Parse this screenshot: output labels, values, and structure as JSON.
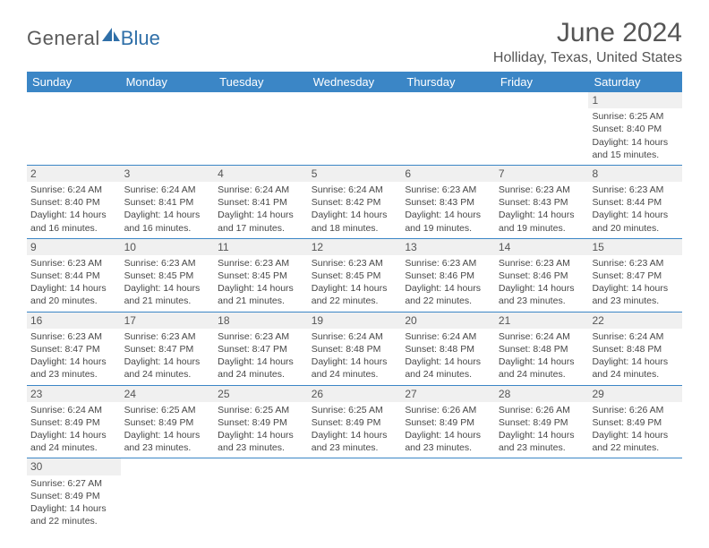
{
  "branding": {
    "logo_text_1": "General",
    "logo_text_2": "Blue",
    "sail_color": "#2f6fa8",
    "text_color_1": "#5a5a5a",
    "text_color_2": "#2f6fa8"
  },
  "header": {
    "title": "June 2024",
    "location": "Holliday, Texas, United States"
  },
  "calendar": {
    "day_header_bg": "#3b86c6",
    "day_header_fg": "#ffffff",
    "rule_color": "#3b86c6",
    "shaded_bg": "#f0f0f0",
    "cell_font_size_pt": 8,
    "day_names": [
      "Sunday",
      "Monday",
      "Tuesday",
      "Wednesday",
      "Thursday",
      "Friday",
      "Saturday"
    ],
    "weeks": [
      [
        null,
        null,
        null,
        null,
        null,
        null,
        {
          "n": "1",
          "sunrise": "Sunrise: 6:25 AM",
          "sunset": "Sunset: 8:40 PM",
          "daylight1": "Daylight: 14 hours",
          "daylight2": "and 15 minutes."
        }
      ],
      [
        {
          "n": "2",
          "sunrise": "Sunrise: 6:24 AM",
          "sunset": "Sunset: 8:40 PM",
          "daylight1": "Daylight: 14 hours",
          "daylight2": "and 16 minutes."
        },
        {
          "n": "3",
          "sunrise": "Sunrise: 6:24 AM",
          "sunset": "Sunset: 8:41 PM",
          "daylight1": "Daylight: 14 hours",
          "daylight2": "and 16 minutes."
        },
        {
          "n": "4",
          "sunrise": "Sunrise: 6:24 AM",
          "sunset": "Sunset: 8:41 PM",
          "daylight1": "Daylight: 14 hours",
          "daylight2": "and 17 minutes."
        },
        {
          "n": "5",
          "sunrise": "Sunrise: 6:24 AM",
          "sunset": "Sunset: 8:42 PM",
          "daylight1": "Daylight: 14 hours",
          "daylight2": "and 18 minutes."
        },
        {
          "n": "6",
          "sunrise": "Sunrise: 6:23 AM",
          "sunset": "Sunset: 8:43 PM",
          "daylight1": "Daylight: 14 hours",
          "daylight2": "and 19 minutes."
        },
        {
          "n": "7",
          "sunrise": "Sunrise: 6:23 AM",
          "sunset": "Sunset: 8:43 PM",
          "daylight1": "Daylight: 14 hours",
          "daylight2": "and 19 minutes."
        },
        {
          "n": "8",
          "sunrise": "Sunrise: 6:23 AM",
          "sunset": "Sunset: 8:44 PM",
          "daylight1": "Daylight: 14 hours",
          "daylight2": "and 20 minutes."
        }
      ],
      [
        {
          "n": "9",
          "sunrise": "Sunrise: 6:23 AM",
          "sunset": "Sunset: 8:44 PM",
          "daylight1": "Daylight: 14 hours",
          "daylight2": "and 20 minutes."
        },
        {
          "n": "10",
          "sunrise": "Sunrise: 6:23 AM",
          "sunset": "Sunset: 8:45 PM",
          "daylight1": "Daylight: 14 hours",
          "daylight2": "and 21 minutes."
        },
        {
          "n": "11",
          "sunrise": "Sunrise: 6:23 AM",
          "sunset": "Sunset: 8:45 PM",
          "daylight1": "Daylight: 14 hours",
          "daylight2": "and 21 minutes."
        },
        {
          "n": "12",
          "sunrise": "Sunrise: 6:23 AM",
          "sunset": "Sunset: 8:45 PM",
          "daylight1": "Daylight: 14 hours",
          "daylight2": "and 22 minutes."
        },
        {
          "n": "13",
          "sunrise": "Sunrise: 6:23 AM",
          "sunset": "Sunset: 8:46 PM",
          "daylight1": "Daylight: 14 hours",
          "daylight2": "and 22 minutes."
        },
        {
          "n": "14",
          "sunrise": "Sunrise: 6:23 AM",
          "sunset": "Sunset: 8:46 PM",
          "daylight1": "Daylight: 14 hours",
          "daylight2": "and 23 minutes."
        },
        {
          "n": "15",
          "sunrise": "Sunrise: 6:23 AM",
          "sunset": "Sunset: 8:47 PM",
          "daylight1": "Daylight: 14 hours",
          "daylight2": "and 23 minutes."
        }
      ],
      [
        {
          "n": "16",
          "sunrise": "Sunrise: 6:23 AM",
          "sunset": "Sunset: 8:47 PM",
          "daylight1": "Daylight: 14 hours",
          "daylight2": "and 23 minutes."
        },
        {
          "n": "17",
          "sunrise": "Sunrise: 6:23 AM",
          "sunset": "Sunset: 8:47 PM",
          "daylight1": "Daylight: 14 hours",
          "daylight2": "and 24 minutes."
        },
        {
          "n": "18",
          "sunrise": "Sunrise: 6:23 AM",
          "sunset": "Sunset: 8:47 PM",
          "daylight1": "Daylight: 14 hours",
          "daylight2": "and 24 minutes."
        },
        {
          "n": "19",
          "sunrise": "Sunrise: 6:24 AM",
          "sunset": "Sunset: 8:48 PM",
          "daylight1": "Daylight: 14 hours",
          "daylight2": "and 24 minutes."
        },
        {
          "n": "20",
          "sunrise": "Sunrise: 6:24 AM",
          "sunset": "Sunset: 8:48 PM",
          "daylight1": "Daylight: 14 hours",
          "daylight2": "and 24 minutes."
        },
        {
          "n": "21",
          "sunrise": "Sunrise: 6:24 AM",
          "sunset": "Sunset: 8:48 PM",
          "daylight1": "Daylight: 14 hours",
          "daylight2": "and 24 minutes."
        },
        {
          "n": "22",
          "sunrise": "Sunrise: 6:24 AM",
          "sunset": "Sunset: 8:48 PM",
          "daylight1": "Daylight: 14 hours",
          "daylight2": "and 24 minutes."
        }
      ],
      [
        {
          "n": "23",
          "sunrise": "Sunrise: 6:24 AM",
          "sunset": "Sunset: 8:49 PM",
          "daylight1": "Daylight: 14 hours",
          "daylight2": "and 24 minutes."
        },
        {
          "n": "24",
          "sunrise": "Sunrise: 6:25 AM",
          "sunset": "Sunset: 8:49 PM",
          "daylight1": "Daylight: 14 hours",
          "daylight2": "and 23 minutes."
        },
        {
          "n": "25",
          "sunrise": "Sunrise: 6:25 AM",
          "sunset": "Sunset: 8:49 PM",
          "daylight1": "Daylight: 14 hours",
          "daylight2": "and 23 minutes."
        },
        {
          "n": "26",
          "sunrise": "Sunrise: 6:25 AM",
          "sunset": "Sunset: 8:49 PM",
          "daylight1": "Daylight: 14 hours",
          "daylight2": "and 23 minutes."
        },
        {
          "n": "27",
          "sunrise": "Sunrise: 6:26 AM",
          "sunset": "Sunset: 8:49 PM",
          "daylight1": "Daylight: 14 hours",
          "daylight2": "and 23 minutes."
        },
        {
          "n": "28",
          "sunrise": "Sunrise: 6:26 AM",
          "sunset": "Sunset: 8:49 PM",
          "daylight1": "Daylight: 14 hours",
          "daylight2": "and 23 minutes."
        },
        {
          "n": "29",
          "sunrise": "Sunrise: 6:26 AM",
          "sunset": "Sunset: 8:49 PM",
          "daylight1": "Daylight: 14 hours",
          "daylight2": "and 22 minutes."
        }
      ],
      [
        {
          "n": "30",
          "sunrise": "Sunrise: 6:27 AM",
          "sunset": "Sunset: 8:49 PM",
          "daylight1": "Daylight: 14 hours",
          "daylight2": "and 22 minutes."
        },
        null,
        null,
        null,
        null,
        null,
        null
      ]
    ]
  }
}
